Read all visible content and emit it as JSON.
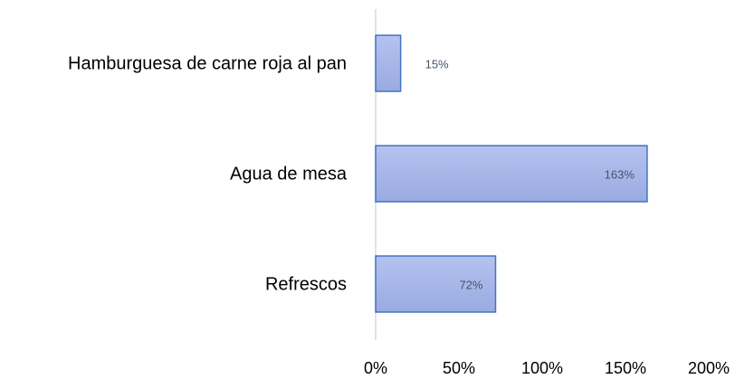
{
  "chart_data": {
    "type": "bar",
    "orientation": "horizontal",
    "categories": [
      "Hamburguesa de carne roja al pan",
      "Agua de mesa",
      "Refrescos"
    ],
    "values": [
      15,
      163,
      72
    ],
    "value_labels": [
      "15%",
      "163%",
      "72%"
    ],
    "color": "#a9b9ea",
    "xlim": [
      0,
      200
    ],
    "xticks": [
      {
        "value": 0,
        "label": "0%"
      },
      {
        "value": 50,
        "label": "50%"
      },
      {
        "value": 100,
        "label": "100%"
      },
      {
        "value": 150,
        "label": "150%"
      },
      {
        "value": 200,
        "label": "200%"
      }
    ],
    "grid": false
  }
}
